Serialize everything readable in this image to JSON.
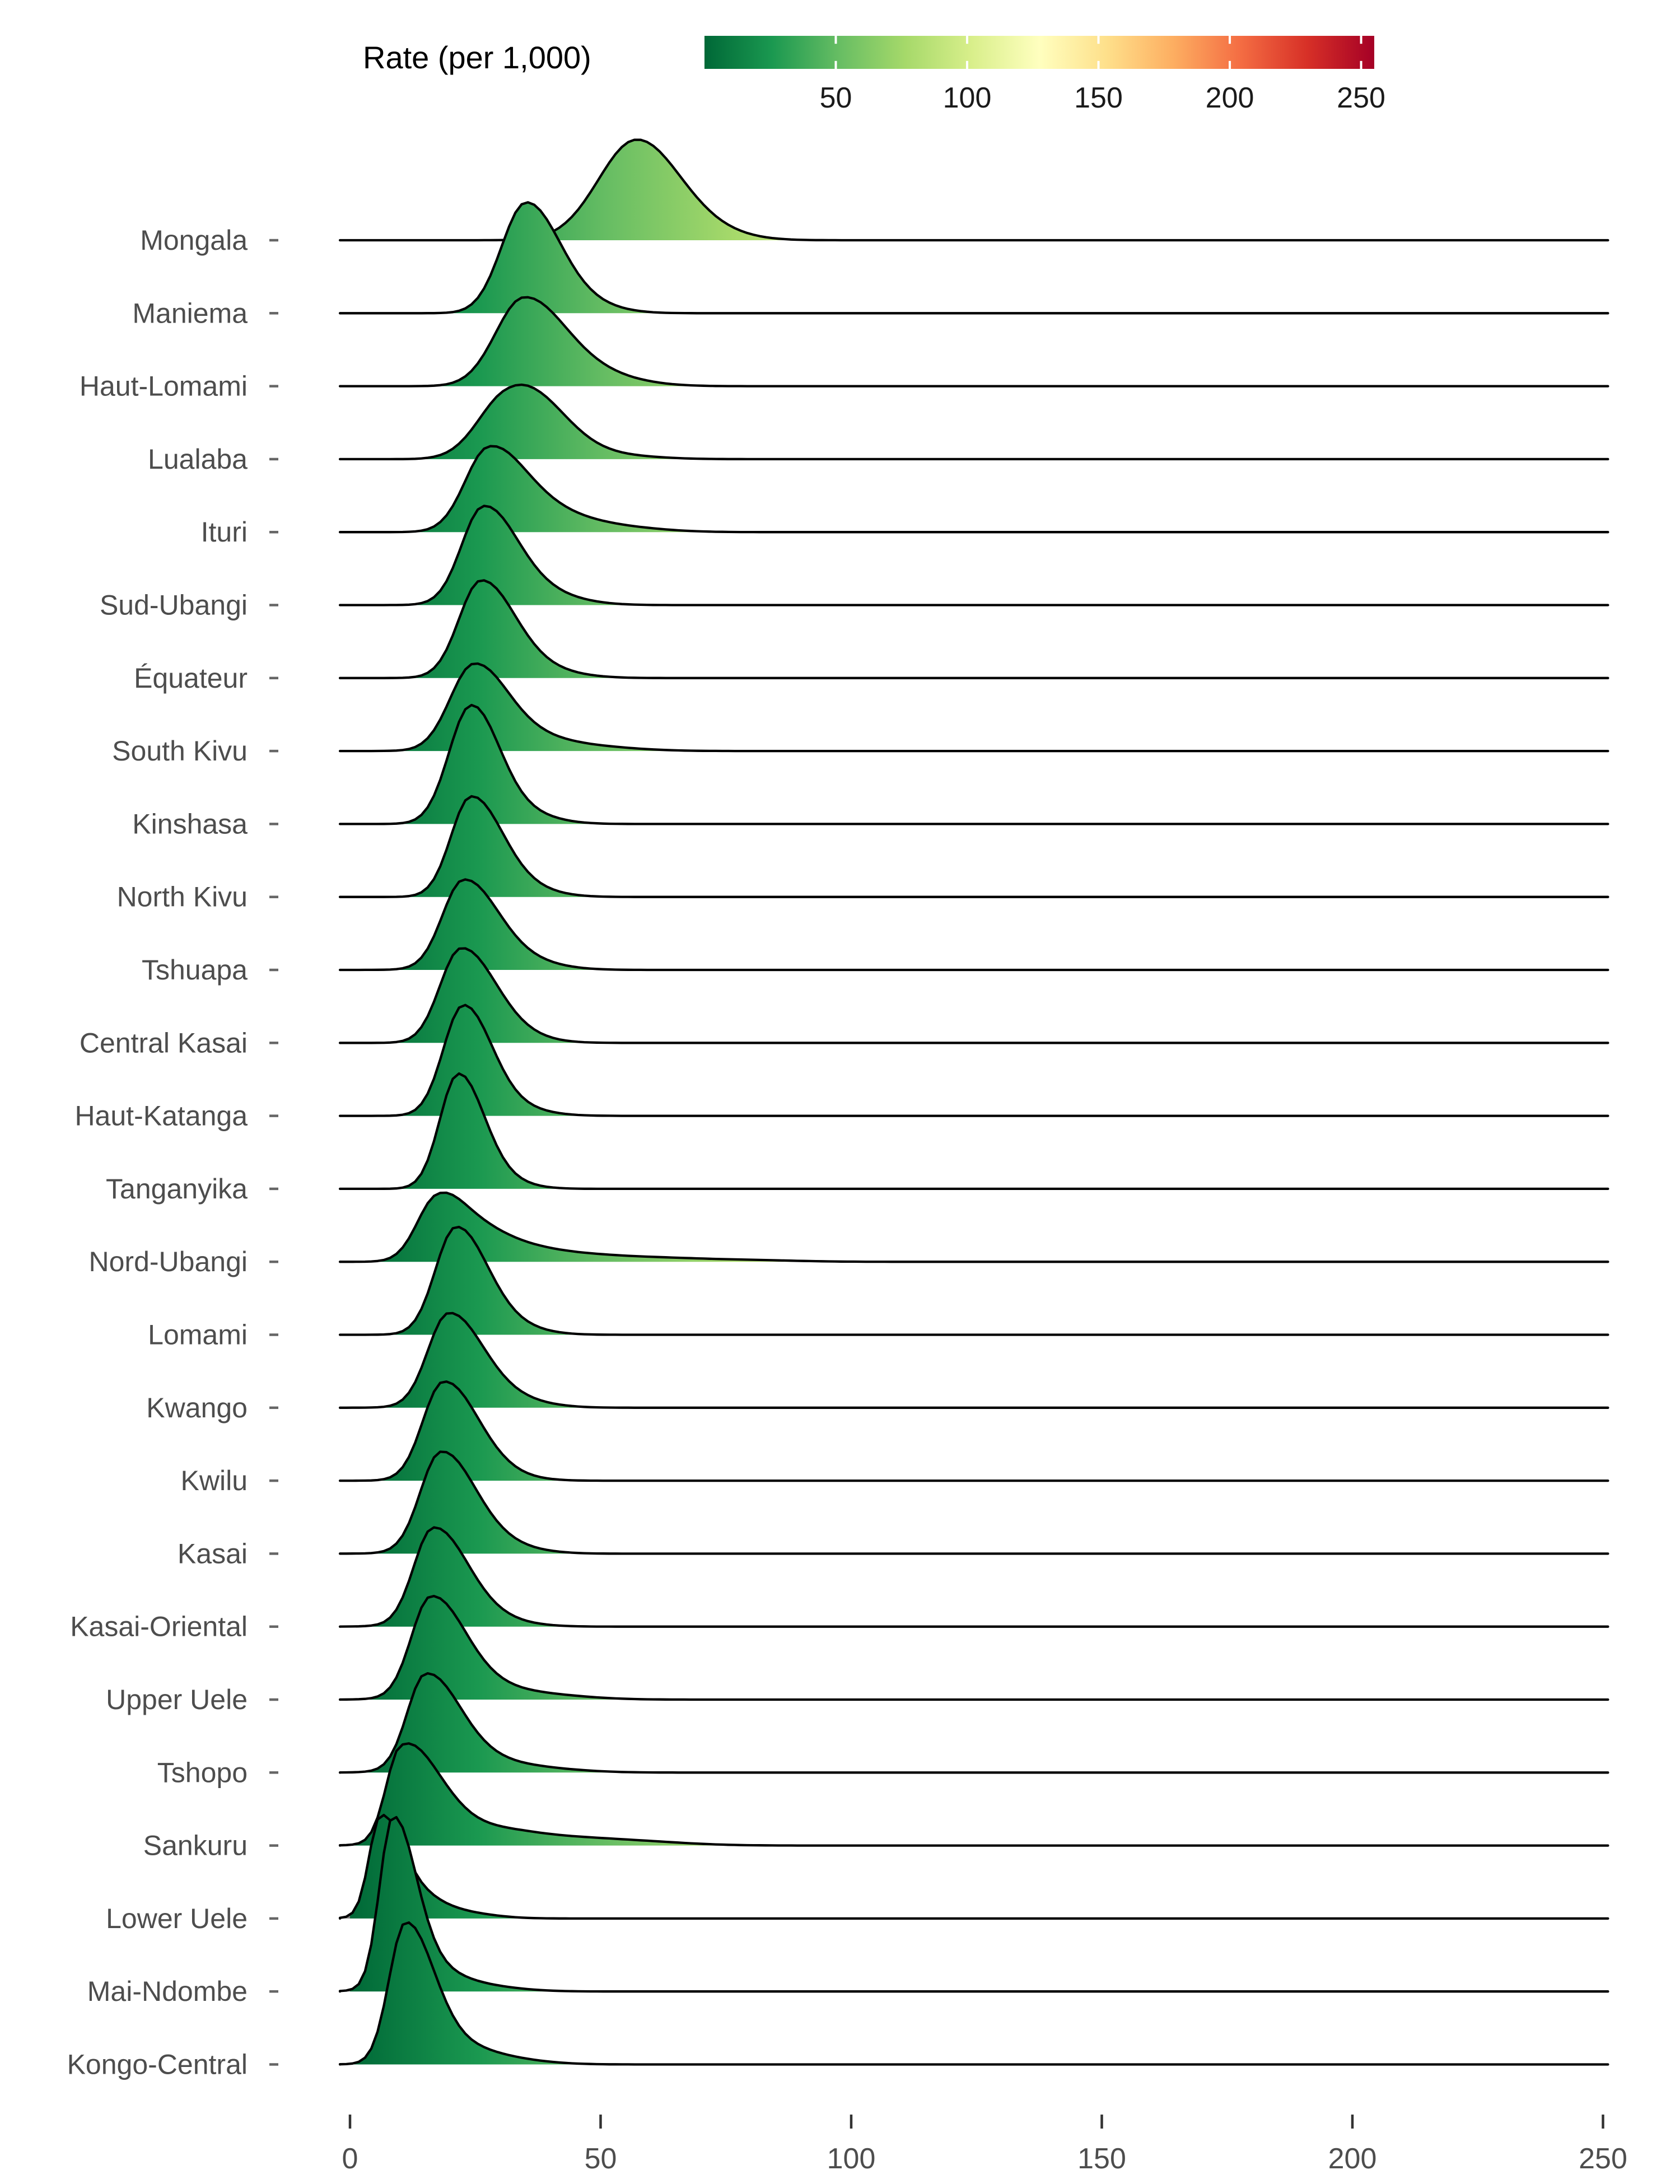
{
  "legend": {
    "title": "Rate (per 1,000)",
    "tick_labels": [
      "50",
      "100",
      "150",
      "200",
      "250"
    ],
    "tick_values": [
      50,
      100,
      150,
      200,
      250
    ],
    "domain": [
      0,
      255
    ],
    "colors": [
      "#006837",
      "#1a9850",
      "#66bd63",
      "#a6d96a",
      "#d9ef8b",
      "#ffffbf",
      "#fee08b",
      "#fdae61",
      "#f46d43",
      "#d73027",
      "#a50026"
    ],
    "below_zero_color": "#7f7f7f"
  },
  "x_axis": {
    "tick_labels": [
      "0",
      "50",
      "100",
      "150",
      "200",
      "250"
    ],
    "tick_values": [
      0,
      50,
      100,
      150,
      200,
      250
    ],
    "label_color": "#4d4d4d"
  },
  "y_axis": {
    "label_color": "#4d4d4d"
  },
  "style": {
    "curve_stroke": "#000000",
    "baseline_span": [
      -2,
      251
    ],
    "title_color": "#000000"
  },
  "chart_data": {
    "type": "area",
    "variant": "ridgeline_density",
    "title": "Rate (per 1,000)",
    "xlabel": "",
    "ylabel": "",
    "x_ticks": [
      0,
      50,
      100,
      150,
      200,
      250
    ],
    "xlim": [
      -2,
      251
    ],
    "legend_position": "top",
    "grid": false,
    "fill_mapping": {
      "scale": "RdYlGn_reversed_along_x",
      "domain": [
        0,
        255
      ],
      "out_of_range_low": "#7f7f7f"
    },
    "categories": [
      "Mongala",
      "Maniema",
      "Haut-Lomami",
      "Lualaba",
      "Ituri",
      "Sud-Ubangi",
      "Équateur",
      "South Kivu",
      "Kinshasa",
      "North Kivu",
      "Tshuapa",
      "Central Kasai",
      "Haut-Katanga",
      "Tanganyika",
      "Nord-Ubangi",
      "Lomami",
      "Kwango",
      "Kwilu",
      "Kasai",
      "Kasai-Oriental",
      "Upper Uele",
      "Tshopo",
      "Sankuru",
      "Lower Uele",
      "Mai-Ndombe",
      "Kongo-Central"
    ],
    "rows": [
      {
        "label": "Mongala",
        "mode": 57,
        "sd_left": 7.5,
        "sd_right": 8.5,
        "peak_height_rows": 1.38,
        "tail_bumps": [
          [
            70,
            0.08,
            8
          ]
        ]
      },
      {
        "label": "Maniema",
        "mode": 35,
        "sd_left": 4.8,
        "sd_right": 6.5,
        "peak_height_rows": 1.52,
        "tail_bumps": [
          [
            45,
            0.1,
            7
          ]
        ]
      },
      {
        "label": "Haut-Lomami",
        "mode": 34.5,
        "sd_left": 5.5,
        "sd_right": 8.0,
        "peak_height_rows": 1.22,
        "tail_bumps": [
          [
            47,
            0.15,
            9
          ]
        ]
      },
      {
        "label": "Lualaba",
        "mode": 30.5,
        "sd_left": 5.5,
        "sd_right": 7.0,
        "peak_height_rows": 1.02,
        "tail_bumps": [
          [
            38,
            0.88,
            7
          ],
          [
            50,
            0.1,
            9
          ]
        ]
      },
      {
        "label": "Ituri",
        "mode": 27.5,
        "sd_left": 4.6,
        "sd_right": 7.0,
        "peak_height_rows": 1.18,
        "tail_bumps": [
          [
            38,
            0.25,
            8
          ],
          [
            52,
            0.07,
            9
          ]
        ]
      },
      {
        "label": "Sud-Ubangi",
        "mode": 26.5,
        "sd_left": 4.3,
        "sd_right": 6.5,
        "peak_height_rows": 1.36,
        "tail_bumps": [
          [
            36,
            0.15,
            8
          ]
        ]
      },
      {
        "label": "Équateur",
        "mode": 26,
        "sd_left": 4.3,
        "sd_right": 6.5,
        "peak_height_rows": 1.34,
        "tail_bumps": [
          [
            35,
            0.12,
            8
          ]
        ]
      },
      {
        "label": "South Kivu",
        "mode": 24.5,
        "sd_left": 4.6,
        "sd_right": 6.5,
        "peak_height_rows": 1.2,
        "tail_bumps": [
          [
            34,
            0.18,
            8
          ],
          [
            48,
            0.05,
            9
          ]
        ]
      },
      {
        "label": "Kinshasa",
        "mode": 24,
        "sd_left": 4.3,
        "sd_right": 5.5,
        "peak_height_rows": 1.63,
        "tail_bumps": [
          [
            32,
            0.12,
            7
          ]
        ]
      },
      {
        "label": "North Kivu",
        "mode": 24,
        "sd_left": 3.9,
        "sd_right": 6.0,
        "peak_height_rows": 1.38,
        "tail_bumps": [
          [
            32,
            0.12,
            7
          ]
        ]
      },
      {
        "label": "Tshuapa",
        "mode": 22.5,
        "sd_left": 4.1,
        "sd_right": 6.5,
        "peak_height_rows": 1.24,
        "tail_bumps": [
          [
            31,
            0.15,
            8
          ]
        ]
      },
      {
        "label": "Central Kasai",
        "mode": 22,
        "sd_left": 4.1,
        "sd_right": 6.5,
        "peak_height_rows": 1.3,
        "tail_bumps": [
          [
            30,
            0.12,
            7
          ]
        ]
      },
      {
        "label": "Haut-Katanga",
        "mode": 22.5,
        "sd_left": 3.9,
        "sd_right": 5.5,
        "peak_height_rows": 1.52,
        "tail_bumps": [
          [
            30,
            0.1,
            7
          ]
        ]
      },
      {
        "label": "Tanganyika",
        "mode": 21.5,
        "sd_left": 3.6,
        "sd_right": 5.0,
        "peak_height_rows": 1.58,
        "tail_bumps": [
          [
            28,
            0.1,
            6
          ]
        ]
      },
      {
        "label": "Nord-Ubangi",
        "mode": 17,
        "sd_left": 3.8,
        "sd_right": 5.0,
        "peak_height_rows": 0.95,
        "tail_bumps": [
          [
            24,
            0.55,
            6
          ],
          [
            33,
            0.25,
            7
          ],
          [
            45,
            0.12,
            8
          ],
          [
            60,
            0.07,
            9
          ],
          [
            78,
            0.035,
            10
          ]
        ]
      },
      {
        "label": "Lomami",
        "mode": 21,
        "sd_left": 4.0,
        "sd_right": 6.0,
        "peak_height_rows": 1.48,
        "tail_bumps": [
          [
            29,
            0.12,
            7
          ]
        ]
      },
      {
        "label": "Kwango",
        "mode": 19.5,
        "sd_left": 4.0,
        "sd_right": 6.5,
        "peak_height_rows": 1.3,
        "tail_bumps": [
          [
            28,
            0.15,
            8
          ]
        ]
      },
      {
        "label": "Kwilu",
        "mode": 18.5,
        "sd_left": 4.0,
        "sd_right": 6.5,
        "peak_height_rows": 1.36,
        "tail_bumps": [
          [
            26,
            0.12,
            7
          ]
        ]
      },
      {
        "label": "Kasai",
        "mode": 18,
        "sd_left": 4.0,
        "sd_right": 6.5,
        "peak_height_rows": 1.4,
        "tail_bumps": [
          [
            26,
            0.14,
            8
          ]
        ]
      },
      {
        "label": "Kasai-Oriental",
        "mode": 16.5,
        "sd_left": 3.8,
        "sd_right": 6.5,
        "peak_height_rows": 1.36,
        "tail_bumps": [
          [
            24,
            0.13,
            8
          ]
        ]
      },
      {
        "label": "Upper Uele",
        "mode": 16,
        "sd_left": 3.8,
        "sd_right": 6.5,
        "peak_height_rows": 1.42,
        "tail_bumps": [
          [
            24,
            0.15,
            8
          ],
          [
            38,
            0.05,
            9
          ]
        ]
      },
      {
        "label": "Tshopo",
        "mode": 15,
        "sd_left": 3.6,
        "sd_right": 6.5,
        "peak_height_rows": 1.36,
        "tail_bumps": [
          [
            23,
            0.15,
            8
          ],
          [
            36,
            0.05,
            9
          ]
        ]
      },
      {
        "label": "Sankuru",
        "mode": 10,
        "sd_left": 2.8,
        "sd_right": 6.0,
        "peak_height_rows": 1.4,
        "tail_bumps": [
          [
            17,
            0.35,
            6
          ],
          [
            28,
            0.16,
            8
          ],
          [
            42,
            0.08,
            10
          ],
          [
            58,
            0.04,
            10
          ]
        ]
      },
      {
        "label": "Lower Uele",
        "mode": 6,
        "sd_left": 2.2,
        "sd_right": 4.0,
        "peak_height_rows": 1.42,
        "tail_bumps": [
          [
            12,
            0.25,
            5
          ],
          [
            20,
            0.08,
            7
          ]
        ]
      },
      {
        "label": "Mai-Ndombe",
        "mode": 8.5,
        "sd_left": 2.6,
        "sd_right": 4.5,
        "peak_height_rows": 2.4,
        "tail_bumps": [
          [
            15,
            0.12,
            6
          ],
          [
            24,
            0.04,
            8
          ]
        ]
      },
      {
        "label": "Kongo-Central",
        "mode": 11,
        "sd_left": 3.2,
        "sd_right": 5.5,
        "peak_height_rows": 1.95,
        "tail_bumps": [
          [
            20,
            0.12,
            7
          ],
          [
            30,
            0.04,
            8
          ]
        ]
      }
    ]
  }
}
